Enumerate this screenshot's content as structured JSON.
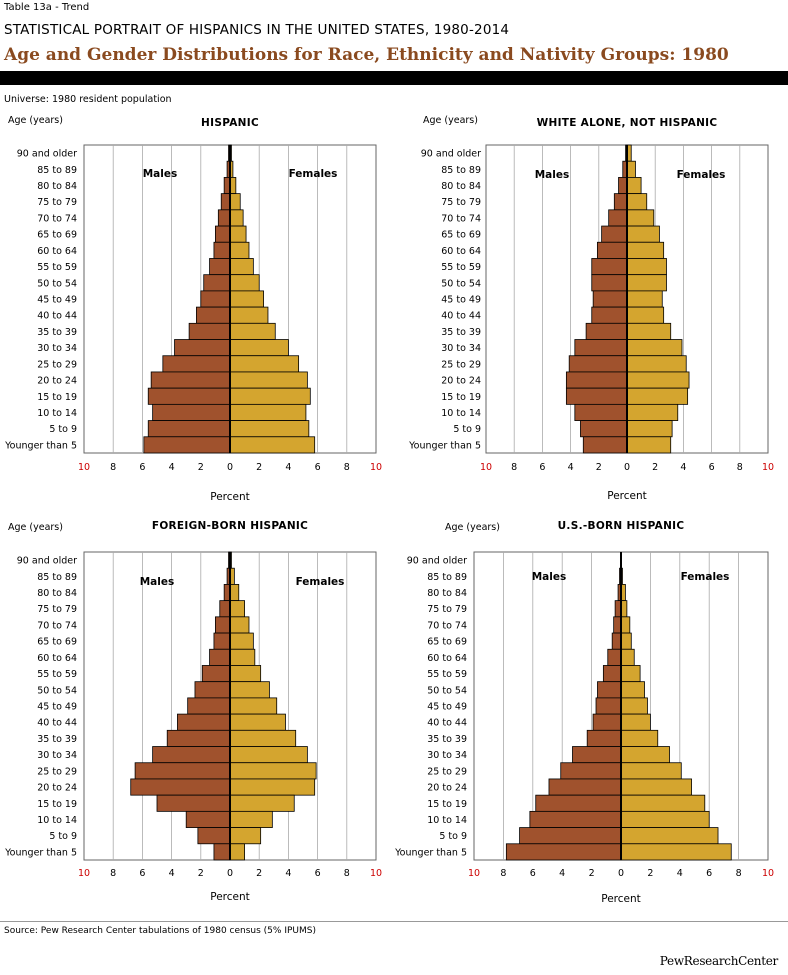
{
  "header": {
    "table_label": "Table 13a - Trend",
    "super_title": "STATISTICAL PORTRAIT OF HISPANICS IN THE UNITED STATES, 1980-2014",
    "title": "Age and Gender Distributions for Race, Ethnicity and Nativity Groups: 1980",
    "universe": "Universe: 1980 resident population"
  },
  "footer": {
    "source": "Source: Pew Research Center tabulations of 1980 census (5% IPUMS)",
    "logo": "PewResearchCenter"
  },
  "colors": {
    "males": "#a0522d",
    "females": "#d4a52f",
    "bar_stroke": "#000000",
    "grid": "#aaaaaa",
    "tick_red": "#cc0000",
    "title_brown": "#8a4a1f"
  },
  "chart_data": [
    {
      "type": "bar",
      "title": "HISPANIC",
      "ylabel": "Age (years)",
      "xlabel": "Percent",
      "male_label": "Males",
      "female_label": "Females",
      "xticks": [
        "10",
        "8",
        "6",
        "4",
        "2",
        "0",
        "2",
        "4",
        "6",
        "8",
        "10"
      ],
      "xlim": [
        -10,
        10
      ],
      "grid": true,
      "categories": [
        "90 and older",
        "85 to 89",
        "80 to 84",
        "75 to 79",
        "70 to 74",
        "65 to 69",
        "60 to 64",
        "55 to 59",
        "50 to 54",
        "45 to 49",
        "40 to 44",
        "35 to 39",
        "30 to 34",
        "25 to 29",
        "20 to 24",
        "15 to 19",
        "10 to 14",
        "5 to 9",
        "Younger than 5"
      ],
      "series": [
        {
          "name": "Males",
          "values": [
            0.1,
            0.2,
            0.4,
            0.6,
            0.8,
            1.0,
            1.1,
            1.4,
            1.8,
            2.0,
            2.3,
            2.8,
            3.8,
            4.6,
            5.4,
            5.6,
            5.3,
            5.6,
            5.9
          ]
        },
        {
          "name": "Females",
          "values": [
            0.1,
            0.2,
            0.4,
            0.7,
            0.9,
            1.1,
            1.3,
            1.6,
            2.0,
            2.3,
            2.6,
            3.1,
            4.0,
            4.7,
            5.3,
            5.5,
            5.2,
            5.4,
            5.8
          ]
        }
      ]
    },
    {
      "type": "bar",
      "title": "WHITE ALONE, NOT HISPANIC",
      "ylabel": "Age (years)",
      "xlabel": "Percent",
      "male_label": "Males",
      "female_label": "Females",
      "xticks": [
        "10",
        "8",
        "6",
        "4",
        "2",
        "0",
        "2",
        "4",
        "6",
        "8",
        "10"
      ],
      "xlim": [
        -10,
        10
      ],
      "grid": true,
      "categories": [
        "90 and older",
        "85 to 89",
        "80 to 84",
        "75 to 79",
        "70 to 74",
        "65 to 69",
        "60 to 64",
        "55 to 59",
        "50 to 54",
        "45 to 49",
        "40 to 44",
        "35 to 39",
        "30 to 34",
        "25 to 29",
        "20 to 24",
        "15 to 19",
        "10 to 14",
        "5 to 9",
        "Younger than 5"
      ],
      "series": [
        {
          "name": "Males",
          "values": [
            0.1,
            0.3,
            0.6,
            0.9,
            1.3,
            1.8,
            2.1,
            2.5,
            2.5,
            2.4,
            2.5,
            2.9,
            3.7,
            4.1,
            4.3,
            4.3,
            3.7,
            3.3,
            3.1
          ]
        },
        {
          "name": "Females",
          "values": [
            0.3,
            0.6,
            1.0,
            1.4,
            1.9,
            2.3,
            2.6,
            2.8,
            2.8,
            2.5,
            2.6,
            3.1,
            3.9,
            4.2,
            4.4,
            4.3,
            3.6,
            3.2,
            3.1
          ]
        }
      ]
    },
    {
      "type": "bar",
      "title": "FOREIGN-BORN HISPANIC",
      "ylabel": "Age (years)",
      "xlabel": "Percent",
      "male_label": "Males",
      "female_label": "Females",
      "xticks": [
        "10",
        "8",
        "6",
        "4",
        "2",
        "0",
        "2",
        "4",
        "6",
        "8",
        "10"
      ],
      "xlim": [
        -10,
        10
      ],
      "grid": true,
      "categories": [
        "90 and older",
        "85 to 89",
        "80 to 84",
        "75 to 79",
        "70 to 74",
        "65 to 69",
        "60 to 64",
        "55 to 59",
        "50 to 54",
        "45 to 49",
        "40 to 44",
        "35 to 39",
        "30 to 34",
        "25 to 29",
        "20 to 24",
        "15 to 19",
        "10 to 14",
        "5 to 9",
        "Younger than 5"
      ],
      "series": [
        {
          "name": "Males",
          "values": [
            0.1,
            0.2,
            0.4,
            0.7,
            1.0,
            1.1,
            1.4,
            1.9,
            2.4,
            2.9,
            3.6,
            4.3,
            5.3,
            6.5,
            6.8,
            5.0,
            3.0,
            2.2,
            1.1
          ]
        },
        {
          "name": "Females",
          "values": [
            0.1,
            0.3,
            0.6,
            1.0,
            1.3,
            1.6,
            1.7,
            2.1,
            2.7,
            3.2,
            3.8,
            4.5,
            5.3,
            5.9,
            5.8,
            4.4,
            2.9,
            2.1,
            1.0
          ]
        }
      ]
    },
    {
      "type": "bar",
      "title": "U.S.-BORN HISPANIC",
      "ylabel": "Age (years)",
      "xlabel": "Percent",
      "male_label": "Males",
      "female_label": "Females",
      "xticks": [
        "10",
        "8",
        "6",
        "4",
        "2",
        "0",
        "2",
        "4",
        "6",
        "8",
        "10"
      ],
      "xlim": [
        -10,
        10
      ],
      "grid": true,
      "categories": [
        "90 and older",
        "85 to 89",
        "80 to 84",
        "75 to 79",
        "70 to 74",
        "65 to 69",
        "60 to 64",
        "55 to 59",
        "50 to 54",
        "45 to 49",
        "40 to 44",
        "35 to 39",
        "30 to 34",
        "25 to 29",
        "20 to 24",
        "15 to 19",
        "10 to 14",
        "5 to 9",
        "Younger than 5"
      ],
      "series": [
        {
          "name": "Males",
          "values": [
            0.0,
            0.1,
            0.2,
            0.4,
            0.5,
            0.6,
            0.9,
            1.2,
            1.6,
            1.7,
            1.9,
            2.3,
            3.3,
            4.1,
            4.9,
            5.8,
            6.2,
            6.9,
            7.8
          ]
        },
        {
          "name": "Females",
          "values": [
            0.0,
            0.1,
            0.3,
            0.4,
            0.6,
            0.7,
            0.9,
            1.3,
            1.6,
            1.8,
            2.0,
            2.5,
            3.3,
            4.1,
            4.8,
            5.7,
            6.0,
            6.6,
            7.5
          ]
        }
      ]
    }
  ]
}
